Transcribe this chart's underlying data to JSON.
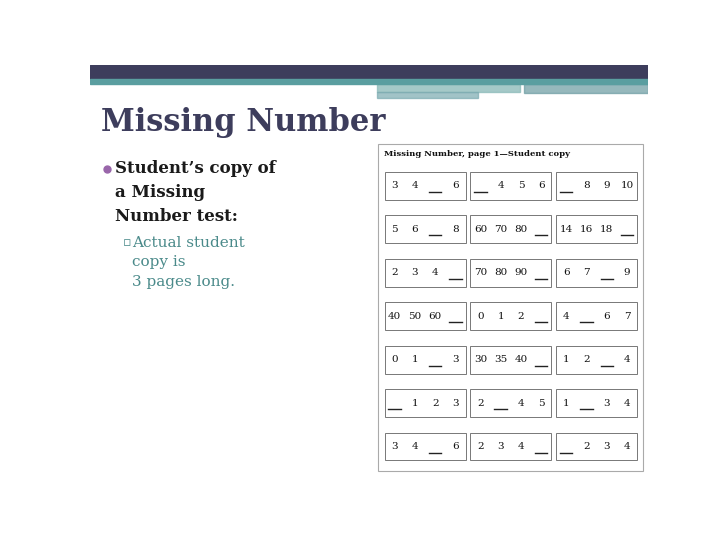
{
  "title": "Missing Number",
  "title_color": "#3d3d5c",
  "bg_color": "#ffffff",
  "header_color1": "#3d3d5c",
  "header_color2": "#5a9ea0",
  "deco_colors": [
    "#8fbcbb",
    "#6fa8a8",
    "#a0b8b8"
  ],
  "bullet_color": "#9966aa",
  "bullet_text_color": "#1a1a1a",
  "sub_bullet_color": "#4a8a8a",
  "sub_bullet_text": "Actual student\ncopy is\n3 pages long.",
  "worksheet_title": "Missing Number, page 1—Student copy",
  "rows": [
    [
      [
        "3",
        "4",
        "__",
        "6"
      ],
      [
        "__",
        "4",
        "5",
        "6"
      ],
      [
        "__",
        "8",
        "9",
        "10"
      ]
    ],
    [
      [
        "5",
        "6",
        "__",
        "8"
      ],
      [
        "60",
        "70",
        "80",
        "__"
      ],
      [
        "14",
        "16",
        "18",
        "__"
      ]
    ],
    [
      [
        "2",
        "3",
        "4",
        "__"
      ],
      [
        "70",
        "80",
        "90",
        "__"
      ],
      [
        "6",
        "7",
        "__",
        "9"
      ]
    ],
    [
      [
        "40",
        "50",
        "60",
        "__"
      ],
      [
        "0",
        "1",
        "2",
        "__"
      ],
      [
        "4",
        "__",
        "6",
        "7"
      ]
    ],
    [
      [
        "0",
        "1",
        "__",
        "3"
      ],
      [
        "30",
        "35",
        "40",
        "__"
      ],
      [
        "1",
        "2",
        "__",
        "4"
      ]
    ],
    [
      [
        "__",
        "1",
        "2",
        "3"
      ],
      [
        "2",
        "__",
        "4",
        "5"
      ],
      [
        "1",
        "__",
        "3",
        "4"
      ]
    ],
    [
      [
        "3",
        "4",
        "__",
        "6"
      ],
      [
        "2",
        "3",
        "4",
        "__"
      ],
      [
        "__",
        "2",
        "3",
        "4"
      ]
    ]
  ]
}
